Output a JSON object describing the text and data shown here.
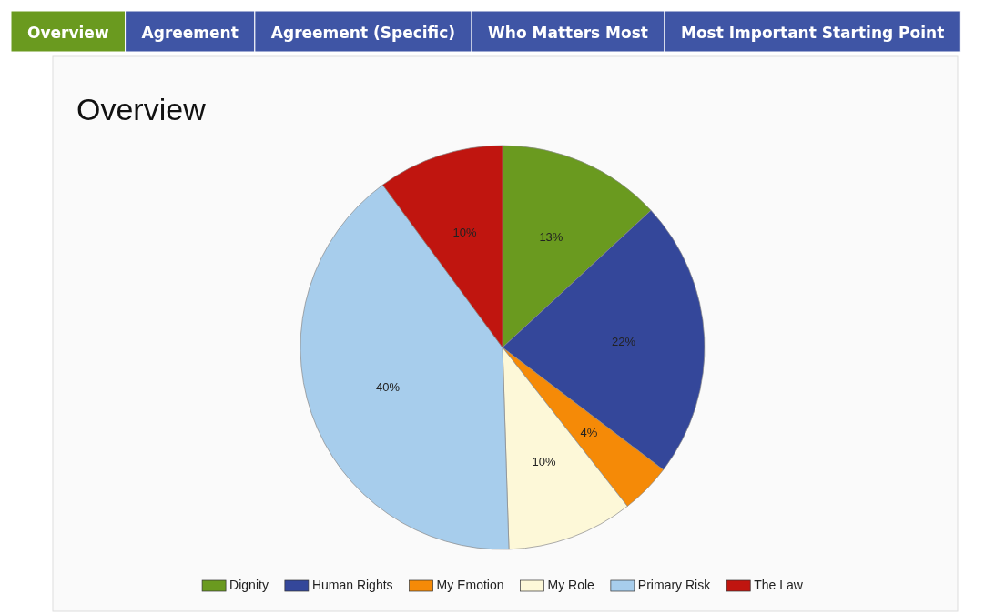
{
  "chart_data": {
    "type": "pie",
    "title": "Overview",
    "categories": [
      "Dignity",
      "Human Rights",
      "My Emotion",
      "My Role",
      "Primary Risk",
      "The Law"
    ],
    "values": [
      13,
      22,
      4,
      10,
      40,
      10
    ],
    "colors": [
      "#6a9a1f",
      "#34479a",
      "#f58a07",
      "#fdf8d8",
      "#a7cdec",
      "#c0150f"
    ],
    "value_labels": [
      "13%",
      "22%",
      "4%",
      "10%",
      "40%",
      "10%"
    ],
    "legend": "bottom",
    "annotations": [
      "Overview",
      "Agreement",
      "Agreement (Specific)",
      "Who Matters Most",
      "Most Important Starting Point"
    ]
  }
}
